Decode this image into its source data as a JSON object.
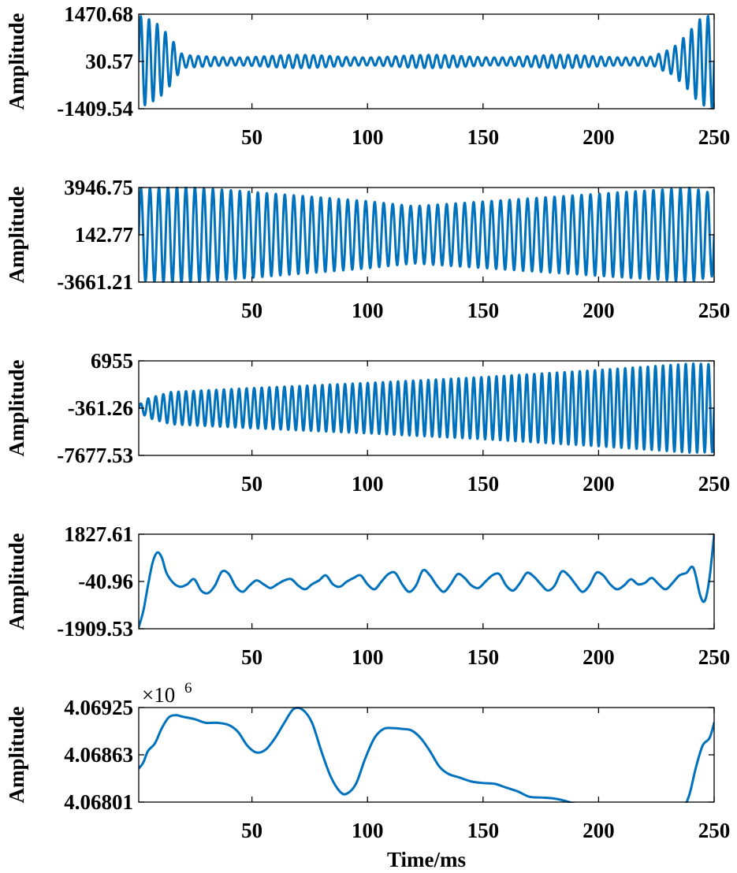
{
  "colors": {
    "line": "#0072bd",
    "axes": "#000000",
    "background": "#ffffff"
  },
  "chart_data": [
    {
      "type": "line",
      "title": "",
      "xlabel": "",
      "ylabel": "Amplitude",
      "xlim": [
        1,
        250
      ],
      "ylim": [
        -1409.54,
        1470.68
      ],
      "xticks": [
        50,
        100,
        150,
        200,
        250
      ],
      "yticks": [
        -1409.54,
        30.57,
        1470.68
      ],
      "ytick_labels": [
        "-1409.54",
        "30.57",
        "1470.68"
      ],
      "exponent": "",
      "grid": false,
      "series": [
        {
          "x_range": [
            1,
            250
          ],
          "description_points": {
            "x": [
              1,
              4,
              7,
              10,
              13,
              16,
              19,
              25,
              50,
              100,
              150,
              200,
              225,
              230,
              235,
              240,
              244,
              247,
              250
            ],
            "y": [
              1300,
              -1350,
              1250,
              -1150,
              900,
              -700,
              300,
              150,
              180,
              160,
              170,
              180,
              190,
              350,
              -500,
              900,
              1450,
              -1400,
              1470
            ]
          }
        }
      ]
    },
    {
      "type": "line",
      "title": "",
      "xlabel": "",
      "ylabel": "Amplitude",
      "xlim": [
        1,
        250
      ],
      "ylim": [
        -3661.21,
        3946.75
      ],
      "xticks": [
        50,
        100,
        150,
        200,
        250
      ],
      "yticks": [
        -3661.21,
        142.77,
        3946.75
      ],
      "ytick_labels": [
        "-3661.21",
        "142.77",
        "3946.75"
      ],
      "exponent": "",
      "grid": false,
      "series": [
        {
          "x_range": [
            1,
            250
          ],
          "cycles": 64,
          "envelope": {
            "x": [
              1,
              20,
              60,
              100,
              120,
              160,
              200,
              240,
              250
            ],
            "amplitude": [
              3700,
              3900,
              3300,
              2700,
              2300,
              2800,
              3300,
              3800,
              3300
            ]
          },
          "center": 142.77
        }
      ]
    },
    {
      "type": "line",
      "title": "",
      "xlabel": "",
      "ylabel": "Amplitude",
      "xlim": [
        1,
        250
      ],
      "ylim": [
        -7677.53,
        6955
      ],
      "xticks": [
        50,
        100,
        150,
        200,
        250
      ],
      "yticks": [
        -7677.53,
        -361.26,
        6955
      ],
      "ytick_labels": [
        "-7677.53",
        "-361.26",
        "6955"
      ],
      "exponent": "",
      "grid": false,
      "series": [
        {
          "x_range": [
            1,
            250
          ],
          "cycles": 76,
          "envelope": {
            "x": [
              1,
              5,
              15,
              50,
              100,
              150,
              200,
              240,
              250
            ],
            "amplitude": [
              500,
              1500,
              2500,
              3100,
              3900,
              4800,
              5900,
              6900,
              6800
            ]
          },
          "center": -361.26
        }
      ]
    },
    {
      "type": "line",
      "title": "",
      "xlabel": "",
      "ylabel": "Amplitude",
      "xlim": [
        1,
        250
      ],
      "ylim": [
        -1909.53,
        1827.61
      ],
      "xticks": [
        50,
        100,
        150,
        200,
        250
      ],
      "yticks": [
        -1909.53,
        -40.96,
        1827.61
      ],
      "ytick_labels": [
        "-1909.53",
        "-40.96",
        "1827.61"
      ],
      "exponent": "",
      "grid": false,
      "series": [
        {
          "x": [
            1,
            3,
            5,
            7,
            9,
            11,
            13,
            16,
            19,
            22,
            25,
            28,
            31,
            34,
            37,
            40,
            43,
            46,
            49,
            52,
            55,
            58,
            61,
            64,
            67,
            70,
            73,
            76,
            79,
            82,
            85,
            88,
            91,
            94,
            97,
            100,
            103,
            106,
            109,
            112,
            115,
            118,
            121,
            124,
            127,
            130,
            133,
            136,
            139,
            142,
            145,
            148,
            151,
            154,
            157,
            160,
            163,
            166,
            169,
            172,
            175,
            178,
            181,
            184,
            187,
            190,
            193,
            196,
            199,
            202,
            205,
            208,
            211,
            214,
            217,
            220,
            223,
            226,
            229,
            232,
            235,
            238,
            241,
            244,
            246,
            248,
            250
          ],
          "y": [
            -1850,
            -1200,
            -200,
            700,
            1100,
            900,
            300,
            -100,
            -250,
            -150,
            50,
            -400,
            -500,
            -200,
            350,
            250,
            -250,
            -450,
            -200,
            0,
            -150,
            -300,
            -150,
            0,
            50,
            -200,
            -350,
            -150,
            0,
            200,
            -150,
            -250,
            -50,
            100,
            200,
            -150,
            -350,
            -50,
            250,
            300,
            -150,
            -450,
            -200,
            400,
            200,
            -200,
            -450,
            -150,
            250,
            100,
            -200,
            -300,
            -50,
            200,
            250,
            -200,
            -400,
            -100,
            300,
            150,
            -150,
            -400,
            -200,
            350,
            200,
            -150,
            -450,
            -200,
            300,
            200,
            -150,
            -350,
            -200,
            50,
            -150,
            -100,
            100,
            -150,
            -350,
            -100,
            200,
            300,
            500,
            -600,
            -800,
            100,
            1827
          ]
        }
      ]
    },
    {
      "type": "line",
      "title": "",
      "xlabel": "Time/ms",
      "ylabel": "Amplitude",
      "xlim": [
        1,
        250
      ],
      "ylim": [
        4.06801,
        4.06925
      ],
      "xticks": [
        50,
        100,
        150,
        200,
        250
      ],
      "yticks": [
        4.06801,
        4.06863,
        4.06925
      ],
      "ytick_labels": [
        "4.06801",
        "4.06863",
        "4.06925"
      ],
      "exponent": "×10",
      "exponent_power": "6",
      "grid": false,
      "series": [
        {
          "x": [
            1,
            3,
            5,
            8,
            11,
            14,
            17,
            20,
            25,
            30,
            35,
            40,
            44,
            48,
            52,
            56,
            60,
            64,
            68,
            72,
            76,
            80,
            84,
            88,
            91,
            95,
            99,
            103,
            107,
            111,
            115,
            119,
            123,
            127,
            131,
            135,
            140,
            145,
            150,
            155,
            160,
            165,
            170,
            175,
            180,
            185,
            190,
            195,
            200,
            205,
            210,
            215,
            220,
            225,
            230,
            235,
            239,
            242,
            245,
            248,
            250
          ],
          "y": [
            4.06845,
            4.06853,
            4.06868,
            4.06878,
            4.06898,
            4.06912,
            4.06915,
            4.06913,
            4.0691,
            4.06905,
            4.06905,
            4.06902,
            4.06893,
            4.06875,
            4.06866,
            4.0687,
            4.06885,
            4.06905,
            4.06923,
            4.06922,
            4.06905,
            4.06868,
            4.06835,
            4.06815,
            4.06812,
            4.06825,
            4.06858,
            4.06885,
            4.06897,
            4.06898,
            4.06897,
            4.06895,
            4.06885,
            4.06868,
            4.06848,
            4.06838,
            4.06833,
            4.06828,
            4.06826,
            4.06825,
            4.0682,
            4.06815,
            4.06808,
            4.06807,
            4.06806,
            4.06803,
            4.06798,
            4.0679,
            4.06785,
            4.06782,
            4.06785,
            4.0679,
            4.06788,
            4.06783,
            4.06779,
            4.06785,
            4.06808,
            4.06845,
            4.06875,
            4.06885,
            4.06905
          ]
        }
      ]
    }
  ]
}
